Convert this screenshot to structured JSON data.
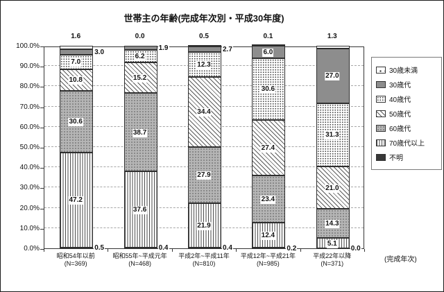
{
  "chart_data": {
    "type": "bar",
    "variant": "100-percent-stacked-column",
    "title": "世帯主の年齢(完成年次別・平成30年度)",
    "x_axis_caption": "(完成年次)",
    "categories": [
      "昭和54年以前 (N=369)",
      "昭和55年~平成元年 (N=468)",
      "平成2年~平成11年 (N=810)",
      "平成12年~平成21年 (N=985)",
      "平成22年以降 (N=371)"
    ],
    "series": [
      {
        "name": "30歳未満",
        "values": [
          1.6,
          0.0,
          0.5,
          0.1,
          1.3
        ]
      },
      {
        "name": "30歳代",
        "values": [
          3.0,
          1.9,
          2.7,
          6.0,
          27.0
        ]
      },
      {
        "name": "40歳代",
        "values": [
          7.0,
          6.2,
          12.3,
          30.6,
          31.3
        ]
      },
      {
        "name": "50歳代",
        "values": [
          10.8,
          15.2,
          34.4,
          27.4,
          21.0
        ]
      },
      {
        "name": "60歳代",
        "values": [
          30.6,
          38.7,
          27.9,
          23.4,
          14.3
        ]
      },
      {
        "name": "70歳代以上",
        "values": [
          47.2,
          37.6,
          21.9,
          12.4,
          5.1
        ]
      },
      {
        "name": "不明",
        "values": [
          0.5,
          0.4,
          0.4,
          0.2,
          0.0
        ]
      }
    ],
    "stack_order_bottom_to_top": [
      "不明",
      "70歳代以上",
      "60歳代",
      "50歳代",
      "40歳代",
      "30歳代",
      "30歳未満"
    ],
    "ylim": [
      0,
      100
    ],
    "y_tick_step": 10,
    "grid": true,
    "legend_position": "right"
  },
  "y_axis_ticks": [
    "100.0%",
    "90.0%",
    "80.0%",
    "70.0%",
    "60.0%",
    "50.0%",
    "40.0%",
    "30.0%",
    "20.0%",
    "10.0%",
    "0.0%"
  ],
  "category_labels": [
    {
      "line1": "昭和54年以前",
      "line2": "(N=369)"
    },
    {
      "line1": "昭和55年~平成元年",
      "line2": "(N=468)"
    },
    {
      "line1": "平成2年~平成11年",
      "line2": "(N=810)"
    },
    {
      "line1": "平成12年~平成21年",
      "line2": "(N=985)"
    },
    {
      "line1": "平成22年以降",
      "line2": "(N=371)"
    }
  ],
  "colors": {
    "ink": "#1a1a1a",
    "fill_30s": "#8d8d8d",
    "fill_60s": "#b5b5b5",
    "fill_unknown": "#383838",
    "grid_line": "#a6a6a6"
  }
}
